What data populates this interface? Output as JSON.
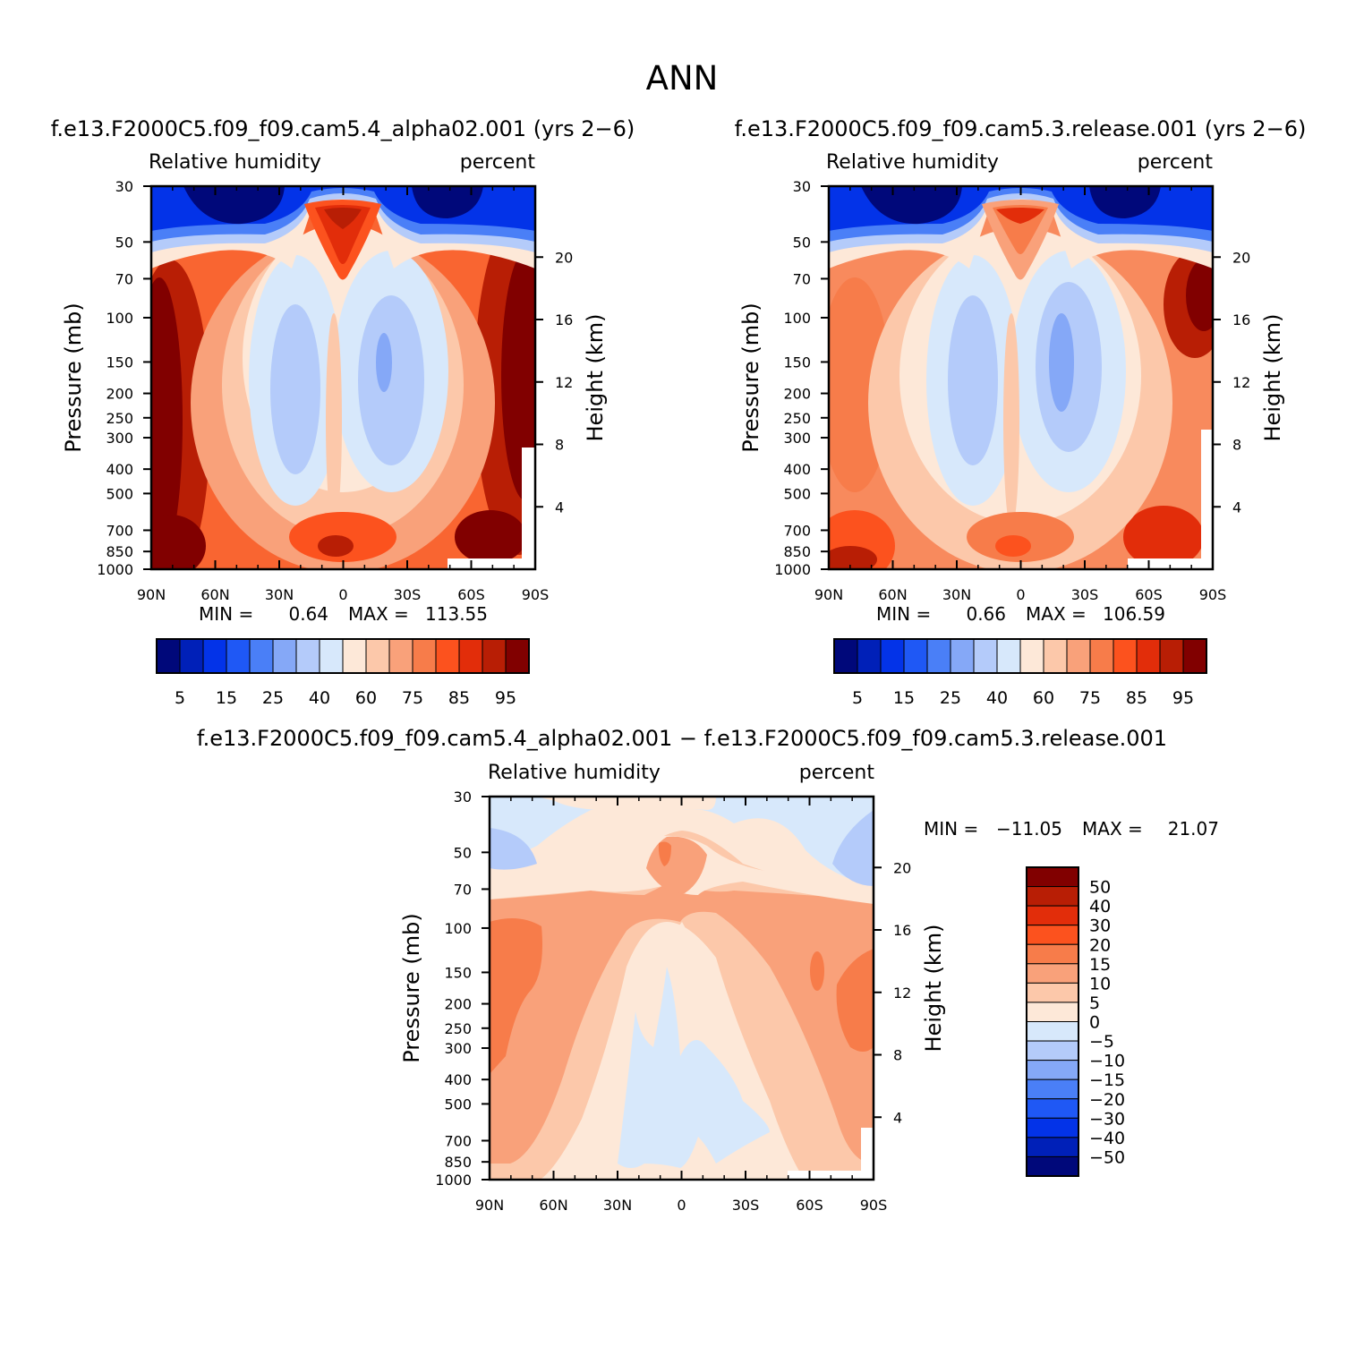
{
  "figure": {
    "title": "ANN"
  },
  "colors": {
    "rh_palette": [
      "#00087a",
      "#0020b8",
      "#0333e8",
      "#1f58f5",
      "#4a7ff7",
      "#85a8f7",
      "#b4cbfa",
      "#d7e8fb",
      "#fde8d8",
      "#fcc8aa",
      "#f9a17a",
      "#f77c4a",
      "#fc521e",
      "#e22d0a",
      "#b81e05",
      "#810000"
    ],
    "diff_palette": [
      "#00087a",
      "#0020b8",
      "#0333e8",
      "#1f58f5",
      "#4a7ff7",
      "#85a8f7",
      "#b4cbfa",
      "#d7e8fb",
      "#fde8d8",
      "#fcc8aa",
      "#f9a17a",
      "#f77c4a",
      "#fc521e",
      "#e22d0a",
      "#b81e05",
      "#810000"
    ]
  },
  "chart_data": [
    {
      "type": "heatmap",
      "panel": "test",
      "title": "f.e13.F2000C5.f09_f09.cam5.4_alpha02.001 (yrs 2−6)",
      "left_label": "Relative humidity",
      "right_label": "percent",
      "ylabel": "Pressure (mb)",
      "ylabel_right": "Height (km)",
      "x_ticks": [
        "90N",
        "60N",
        "30N",
        "0",
        "30S",
        "60S",
        "90S"
      ],
      "x_range": [
        90,
        -90
      ],
      "y_ticks": [
        "30",
        "50",
        "70",
        "100",
        "150",
        "200",
        "250",
        "300",
        "400",
        "500",
        "700",
        "850",
        "1000"
      ],
      "y_range_mb": [
        30,
        1000
      ],
      "height_ticks": [
        "20",
        "16",
        "12",
        "8",
        "4"
      ],
      "min_label": "MIN =",
      "min_value": "0.64",
      "max_label": "MAX =",
      "max_value": "113.55",
      "colorbar_labels": [
        "5",
        "15",
        "25",
        "40",
        "60",
        "75",
        "85",
        "95"
      ],
      "levels": [
        5,
        10,
        15,
        20,
        25,
        30,
        40,
        50,
        60,
        70,
        75,
        80,
        85,
        90,
        95
      ]
    },
    {
      "type": "heatmap",
      "panel": "control",
      "title": "f.e13.F2000C5.f09_f09.cam5.3.release.001 (yrs 2−6)",
      "left_label": "Relative humidity",
      "right_label": "percent",
      "ylabel": "Pressure (mb)",
      "ylabel_right": "Height (km)",
      "x_ticks": [
        "90N",
        "60N",
        "30N",
        "0",
        "30S",
        "60S",
        "90S"
      ],
      "x_range": [
        90,
        -90
      ],
      "y_ticks": [
        "30",
        "50",
        "70",
        "100",
        "150",
        "200",
        "250",
        "300",
        "400",
        "500",
        "700",
        "850",
        "1000"
      ],
      "y_range_mb": [
        30,
        1000
      ],
      "height_ticks": [
        "20",
        "16",
        "12",
        "8",
        "4"
      ],
      "min_label": "MIN =",
      "min_value": "0.66",
      "max_label": "MAX =",
      "max_value": "106.59",
      "colorbar_labels": [
        "5",
        "15",
        "25",
        "40",
        "60",
        "75",
        "85",
        "95"
      ],
      "levels": [
        5,
        10,
        15,
        20,
        25,
        30,
        40,
        50,
        60,
        70,
        75,
        80,
        85,
        90,
        95
      ]
    },
    {
      "type": "heatmap",
      "panel": "difference",
      "title": "f.e13.F2000C5.f09_f09.cam5.4_alpha02.001 − f.e13.F2000C5.f09_f09.cam5.3.release.001",
      "left_label": "Relative humidity",
      "right_label": "percent",
      "ylabel": "Pressure (mb)",
      "ylabel_right": "Height (km)",
      "x_ticks": [
        "90N",
        "60N",
        "30N",
        "0",
        "30S",
        "60S",
        "90S"
      ],
      "x_range": [
        90,
        -90
      ],
      "y_ticks": [
        "30",
        "50",
        "70",
        "100",
        "150",
        "200",
        "250",
        "300",
        "400",
        "500",
        "700",
        "850",
        "1000"
      ],
      "y_range_mb": [
        30,
        1000
      ],
      "height_ticks": [
        "20",
        "16",
        "12",
        "8",
        "4"
      ],
      "min_label": "MIN =",
      "min_value": "−11.05",
      "max_label": "MAX =",
      "max_value": "21.07",
      "colorbar_labels": [
        "50",
        "40",
        "30",
        "20",
        "15",
        "10",
        "5",
        "0",
        "−5",
        "−10",
        "−15",
        "−20",
        "−30",
        "−40",
        "−50"
      ],
      "levels": [
        -50,
        -40,
        -30,
        -20,
        -15,
        -10,
        -5,
        0,
        5,
        10,
        15,
        20,
        30,
        40,
        50
      ]
    }
  ]
}
